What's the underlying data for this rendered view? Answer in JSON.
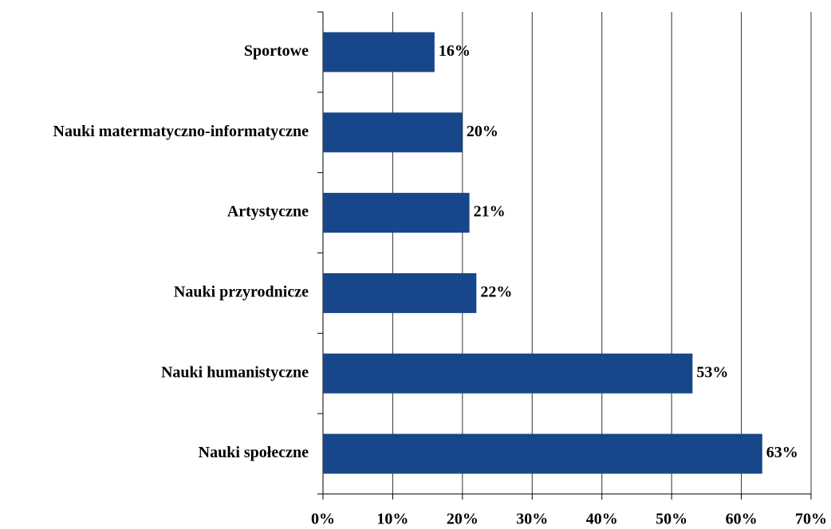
{
  "chart_data": {
    "type": "bar",
    "orientation": "horizontal",
    "categories": [
      "Sportowe",
      "Nauki matermatyczno-informatyczne",
      "Artystyczne",
      "Nauki przyrodnicze",
      "Nauki humanistyczne",
      "Nauki społeczne"
    ],
    "values": [
      16,
      20,
      21,
      22,
      53,
      63
    ],
    "value_labels": [
      "16%",
      "20%",
      "21%",
      "22%",
      "53%",
      "63%"
    ],
    "color": "#17478a",
    "xlim": [
      0,
      70
    ],
    "xticks": [
      {
        "value": 0,
        "label": "0%"
      },
      {
        "value": 10,
        "label": "10%"
      },
      {
        "value": 20,
        "label": "20%"
      },
      {
        "value": 30,
        "label": "30%"
      },
      {
        "value": 40,
        "label": "40%"
      },
      {
        "value": 50,
        "label": "50%"
      },
      {
        "value": 60,
        "label": "60%"
      },
      {
        "value": 70,
        "label": "70%"
      }
    ],
    "grid": true
  }
}
